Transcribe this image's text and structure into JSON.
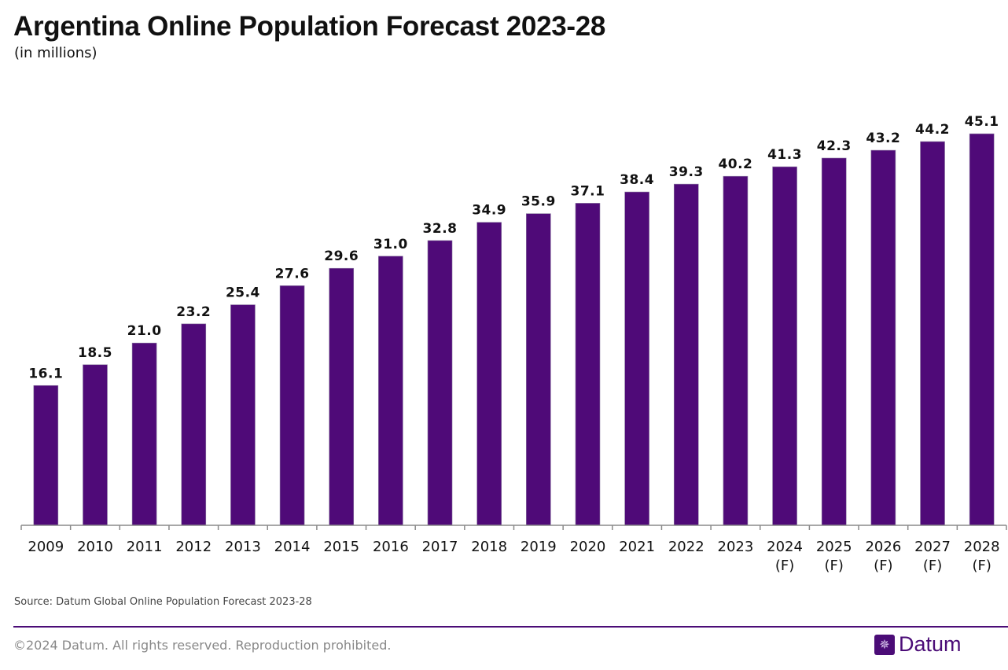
{
  "chart_data": {
    "type": "bar",
    "title": "Argentina Online Population Forecast 2023-28",
    "subtitle": "(in millions)",
    "categories": [
      "2009",
      "2010",
      "2011",
      "2012",
      "2013",
      "2014",
      "2015",
      "2016",
      "2017",
      "2018",
      "2019",
      "2020",
      "2021",
      "2022",
      "2023",
      "2024\n(F)",
      "2025\n(F)",
      "2026\n(F)",
      "2027\n(F)",
      "2028\n(F)"
    ],
    "values": [
      16.1,
      18.5,
      21.0,
      23.2,
      25.4,
      27.6,
      29.6,
      31.0,
      32.8,
      34.9,
      35.9,
      37.1,
      38.4,
      39.3,
      40.2,
      41.3,
      42.3,
      43.2,
      44.2,
      45.1
    ],
    "value_labels": [
      "16.1",
      "18.5",
      "21.0",
      "23.2",
      "25.4",
      "27.6",
      "29.6",
      "31.0",
      "32.8",
      "34.9",
      "35.9",
      "37.1",
      "38.4",
      "39.3",
      "40.2",
      "41.3",
      "42.3",
      "43.2",
      "44.2",
      "45.1"
    ],
    "xlabel": "",
    "ylabel": "",
    "ylim": [
      0,
      50
    ],
    "grid": false,
    "bar_color": "#4f0a78"
  },
  "source": "Source: Datum Global Online Population Forecast 2023-28",
  "footer": {
    "copyright": "©2024 Datum. All rights reserved. Reproduction prohibited.",
    "logo_text": "Datum",
    "logo_icon": "globe-grid-icon"
  }
}
